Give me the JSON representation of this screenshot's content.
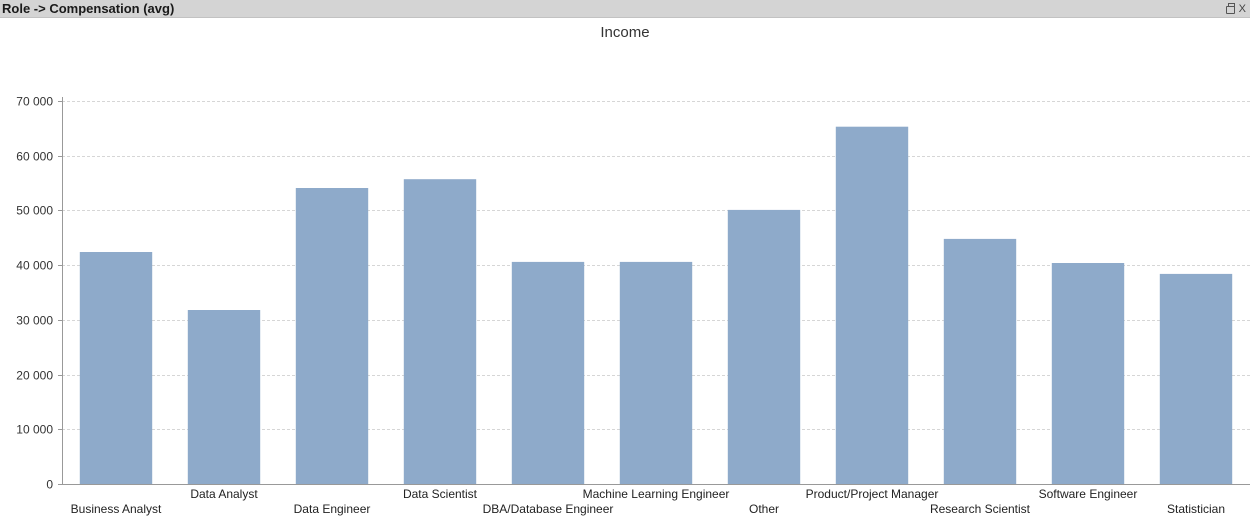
{
  "window": {
    "title": "Role -> Compensation (avg)",
    "icons": [
      "print-icon",
      "close-icon"
    ],
    "close_label": "X"
  },
  "chart_data": {
    "type": "bar",
    "title": "Income",
    "xlabel": "",
    "ylabel": "",
    "categories": [
      "Business Analyst",
      "Data Analyst",
      "Data Engineer",
      "Data Scientist",
      "DBA/Database Engineer",
      "Machine Learning Engineer",
      "Other",
      "Product/Project Manager",
      "Research Scientist",
      "Software Engineer",
      "Statistician"
    ],
    "values": [
      42400,
      31800,
      54100,
      55700,
      40600,
      40600,
      50100,
      65300,
      44800,
      40400,
      38400
    ],
    "ylim": [
      0,
      70000
    ],
    "yticks": [
      0,
      10000,
      20000,
      30000,
      40000,
      50000,
      60000,
      70000
    ],
    "ytick_labels": [
      "0",
      "10 000",
      "20 000",
      "30 000",
      "40 000",
      "50 000",
      "60 000",
      "70 000"
    ],
    "grid": true,
    "bar_color": "#8eaaca",
    "grid_color": "#d6d6d6"
  }
}
